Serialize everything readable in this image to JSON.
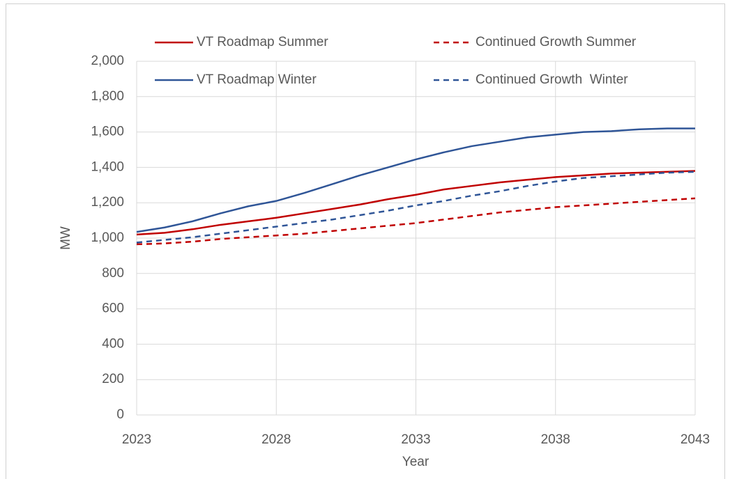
{
  "chart_data": {
    "type": "line",
    "x": [
      2023,
      2024,
      2025,
      2026,
      2027,
      2028,
      2029,
      2030,
      2031,
      2032,
      2033,
      2034,
      2035,
      2036,
      2037,
      2038,
      2039,
      2040,
      2041,
      2042,
      2043
    ],
    "series": [
      {
        "name": "VT Roadmap Summer",
        "color": "#c00000",
        "style": "solid",
        "values": [
          1020,
          1030,
          1050,
          1075,
          1095,
          1115,
          1140,
          1165,
          1190,
          1220,
          1245,
          1275,
          1295,
          1315,
          1330,
          1345,
          1355,
          1365,
          1370,
          1375,
          1380
        ]
      },
      {
        "name": "Continued Growth Summer",
        "color": "#c00000",
        "style": "dashed",
        "values": [
          965,
          970,
          980,
          995,
          1005,
          1015,
          1025,
          1040,
          1055,
          1070,
          1085,
          1105,
          1125,
          1145,
          1160,
          1175,
          1185,
          1195,
          1205,
          1215,
          1225
        ]
      },
      {
        "name": "VT Roadmap Winter",
        "color": "#2f5597",
        "style": "solid",
        "values": [
          1035,
          1060,
          1095,
          1140,
          1180,
          1210,
          1255,
          1305,
          1355,
          1400,
          1445,
          1485,
          1520,
          1545,
          1570,
          1585,
          1600,
          1605,
          1615,
          1620,
          1620
        ]
      },
      {
        "name": "Continued Growth  Winter",
        "color": "#2f5597",
        "style": "dashed",
        "values": [
          975,
          990,
          1005,
          1025,
          1045,
          1065,
          1085,
          1105,
          1130,
          1155,
          1185,
          1210,
          1240,
          1265,
          1295,
          1320,
          1340,
          1350,
          1360,
          1370,
          1375
        ]
      }
    ],
    "x_label": "Year",
    "y_label": "MW",
    "xlim": [
      2023,
      2043
    ],
    "xticks": [
      2023,
      2028,
      2033,
      2038,
      2043
    ],
    "ylim": [
      0,
      2000
    ],
    "yticks": [
      0,
      200,
      400,
      600,
      800,
      {
        "value": 1000,
        "label": "1,000"
      },
      {
        "value": 1200,
        "label": "1,200"
      },
      {
        "value": 1400,
        "label": "1,400"
      },
      {
        "value": 1600,
        "label": "1,600"
      },
      {
        "value": 1800,
        "label": "1,800"
      },
      {
        "value": 2000,
        "label": "2,000"
      }
    ],
    "grid": true
  }
}
